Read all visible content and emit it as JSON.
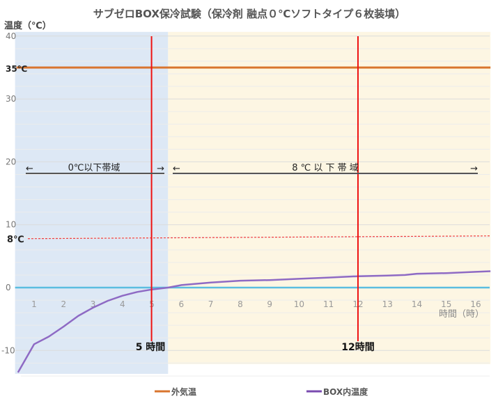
{
  "chart_data": {
    "type": "line",
    "title": "サブゼロBOX保冷試験（保冷剤 融点０℃ソフトタイプ６枚装填）",
    "ylabel": "温度（℃）",
    "xlabel": "時間（時）",
    "ylim": [
      -13.5,
      40
    ],
    "xlim": [
      0.4,
      16.5
    ],
    "y_ticks": [
      "40",
      "30",
      "20",
      "10",
      "0",
      "-10"
    ],
    "y_tick_values": [
      40,
      30,
      20,
      10,
      0,
      -10
    ],
    "x_ticks": [
      "1",
      "2",
      "3",
      "4",
      "5",
      "6",
      "7",
      "8",
      "9",
      "10",
      "11",
      "12",
      "13",
      "14",
      "15",
      "16"
    ],
    "grid": true,
    "legend_position": "bottom",
    "series": [
      {
        "name": "外気温",
        "color": "#d9752e",
        "x": [
          0.4,
          16.5
        ],
        "y": [
          35,
          35
        ]
      },
      {
        "name": "BOX内温度",
        "color": "#8e6ac4",
        "x": [
          0.45,
          1,
          1.5,
          2,
          2.5,
          3,
          3.5,
          4,
          4.5,
          5,
          5.55,
          6,
          7,
          8,
          9,
          10,
          11,
          12,
          13,
          13.6,
          14,
          15,
          16,
          16.5
        ],
        "y": [
          -13.5,
          -9,
          -7.8,
          -6.2,
          -4.5,
          -3.2,
          -2.1,
          -1.3,
          -0.7,
          -0.3,
          0,
          0.4,
          0.8,
          1.1,
          1.2,
          1.4,
          1.6,
          1.8,
          1.9,
          2.0,
          2.2,
          2.3,
          2.5,
          2.6
        ]
      }
    ],
    "zero_line_color": "#5bbde0",
    "regions": [
      {
        "from": 0.4,
        "to": 5.55,
        "color": "#dde8f5"
      },
      {
        "from": 5.55,
        "to": 16.5,
        "color": "#fdf6e3"
      }
    ],
    "annotations": {
      "outside_temp_label": "35℃",
      "threshold_label": "8℃",
      "threshold_value": 8,
      "band1_label": "0℃以下帯域",
      "band2_label": "8 ℃ 以 下 帯 域",
      "marker1_label": "5 時間",
      "marker1_x": 5,
      "marker2_label": "12時間",
      "marker2_x": 12,
      "arrow_left": "←",
      "arrow_right": "→"
    }
  }
}
